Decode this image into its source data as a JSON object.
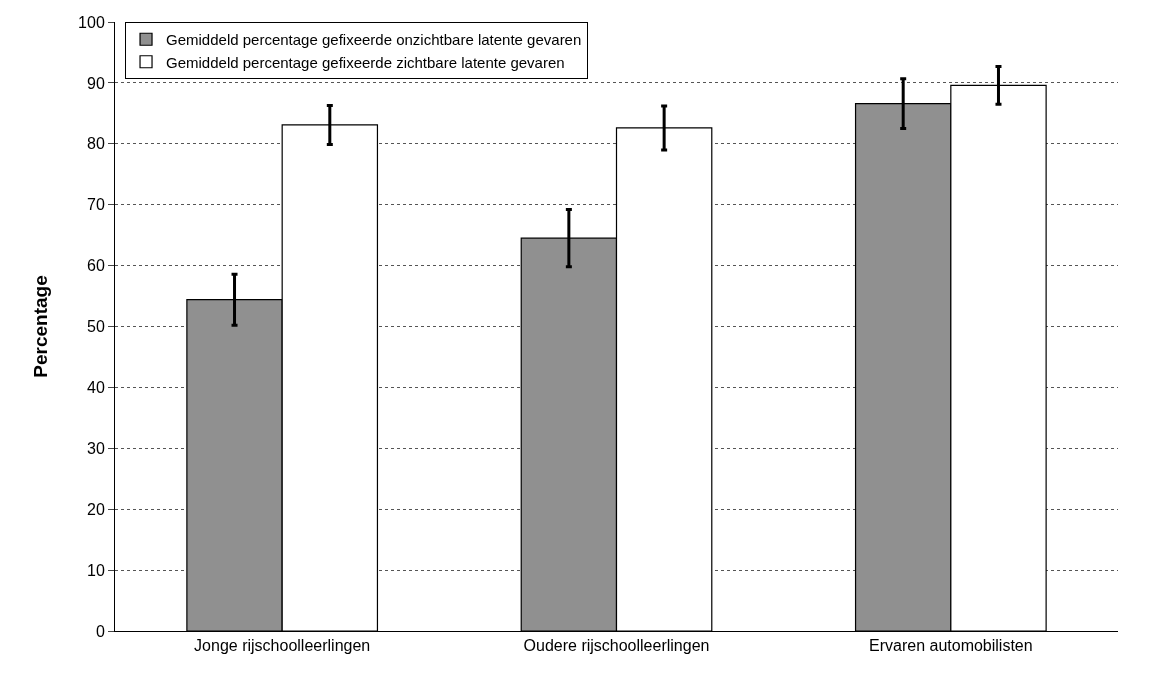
{
  "chart_data": {
    "type": "bar",
    "ylabel": "Percentage",
    "categories": [
      "Jonge rijschoolleerlingen",
      "Oudere rijschoolleerlingen",
      "Ervaren automobilisten"
    ],
    "series": [
      {
        "name": "Gemiddeld percentage gefixeerde onzichtbare latente gevaren",
        "color": "#909090",
        "values": [
          54.4,
          64.5,
          86.6
        ],
        "errors": [
          4.2,
          4.7,
          4.1
        ]
      },
      {
        "name": "Gemiddeld percentage gefixeerde zichtbare latente gevaren",
        "color": "#ffffff",
        "values": [
          83.1,
          82.6,
          89.6
        ],
        "errors": [
          3.2,
          3.6,
          3.1
        ]
      }
    ],
    "ylim": [
      0,
      100
    ],
    "yticks": [
      0,
      10,
      20,
      30,
      40,
      50,
      60,
      70,
      80,
      90,
      100
    ],
    "grid": "y",
    "legend": "top left"
  }
}
